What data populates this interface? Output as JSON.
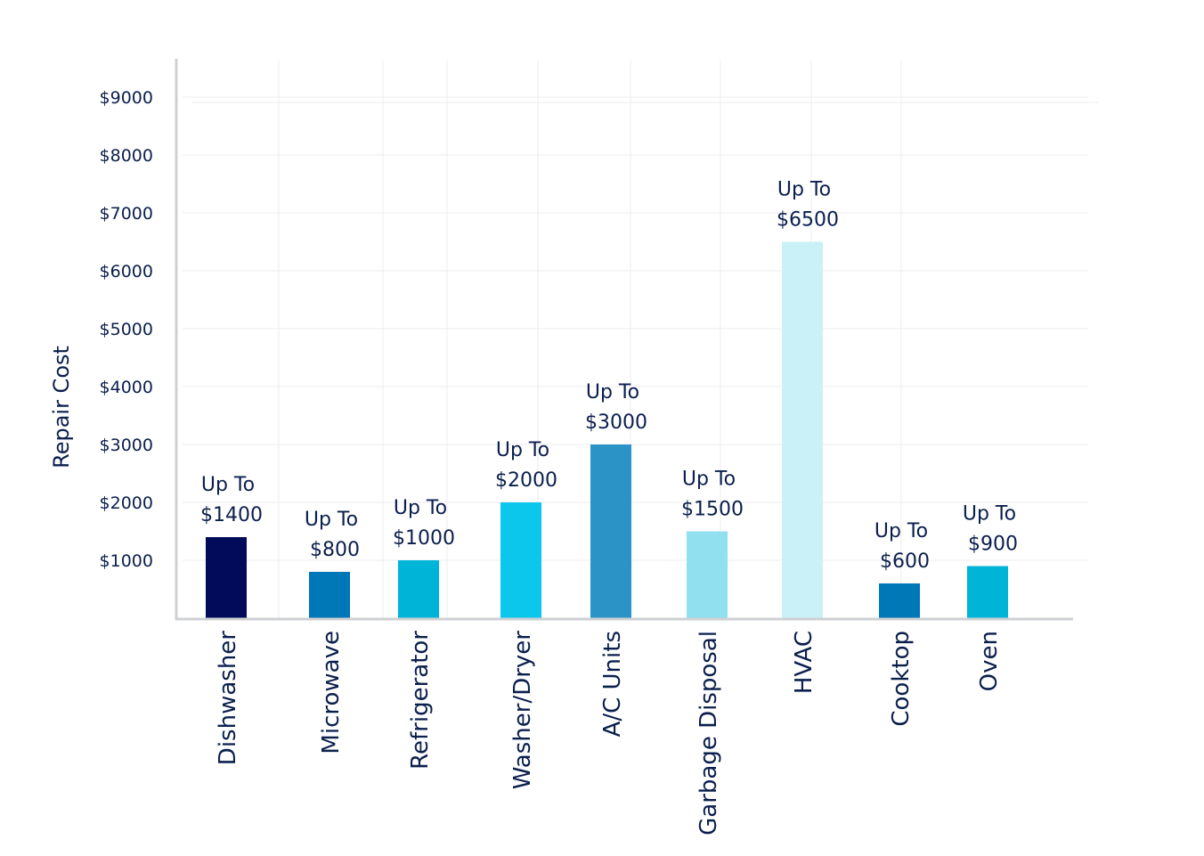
{
  "chart_data": {
    "type": "bar",
    "title": "",
    "xlabel": "",
    "ylabel": "Repair Cost",
    "ylim": [
      0,
      9000
    ],
    "grid": true,
    "y_ticks": [
      {
        "value": 1000,
        "label": "$1000"
      },
      {
        "value": 2000,
        "label": "$2000"
      },
      {
        "value": 3000,
        "label": "$3000"
      },
      {
        "value": 4000,
        "label": "$4000"
      },
      {
        "value": 5000,
        "label": "$5000"
      },
      {
        "value": 6000,
        "label": "$6000"
      },
      {
        "value": 7000,
        "label": "$7000"
      },
      {
        "value": 8000,
        "label": "$8000"
      },
      {
        "value": 9000,
        "label": "$9000"
      }
    ],
    "categories": [
      "Dishwasher",
      "Microwave",
      "Refrigerator",
      "Washer/Dryer",
      "A/C Units",
      "Garbage Disposal",
      "HVAC",
      "Cooktop",
      "Oven"
    ],
    "values": [
      1400,
      800,
      1000,
      2000,
      3000,
      1500,
      6500,
      600,
      900
    ],
    "label_prefix": [
      "Up To",
      "Up To",
      "Up To",
      "Up To",
      "Up To",
      "Up To",
      "Up To",
      "Up To",
      "Up To"
    ],
    "value_labels": [
      "$1400",
      "$800",
      "$1000",
      "$2000",
      "$3000",
      "$1500",
      "$6500",
      "$600",
      "$900"
    ],
    "colors": [
      "#020b5a",
      "#0077b6",
      "#00b4d8",
      "#0bc7ec",
      "#2c93c7",
      "#90e0ef",
      "#caf0f8",
      "#0077b6",
      "#00b4d8"
    ],
    "text_color": "#0b1f4d",
    "grid_color": "#ececf0",
    "axis_color": "#cfd0d4"
  }
}
